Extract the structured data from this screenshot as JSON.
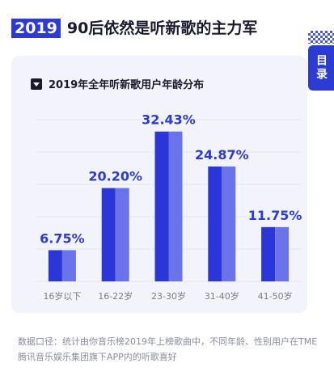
{
  "header": {
    "year": "2019",
    "title": "90后依然是听新歌的主力军"
  },
  "toc_tab": {
    "label": "目录"
  },
  "chart_data": {
    "type": "bar",
    "title": "2019年全年听新歌用户年龄分布",
    "categories": [
      "16岁以下",
      "16-22岁",
      "23-30岁",
      "31-40岁",
      "41-50岁"
    ],
    "values": [
      6.75,
      20.2,
      32.43,
      24.87,
      11.75
    ],
    "value_labels": [
      "6.75%",
      "20.20%",
      "32.43%",
      "24.87%",
      "11.75%"
    ],
    "ylim": [
      0,
      35
    ],
    "grid": true,
    "colors": {
      "bar_dark": "#2b36d9",
      "bar_light": "#6a73ea",
      "label": "#2d3bd6",
      "grid": "#e3e5f2"
    }
  },
  "footer": {
    "note": "数据口径：统计由你音乐榜2019年上榜歌曲中，不同年龄、性别用户在TME腾讯音乐娱乐集团旗下APP内的听歌喜好"
  }
}
